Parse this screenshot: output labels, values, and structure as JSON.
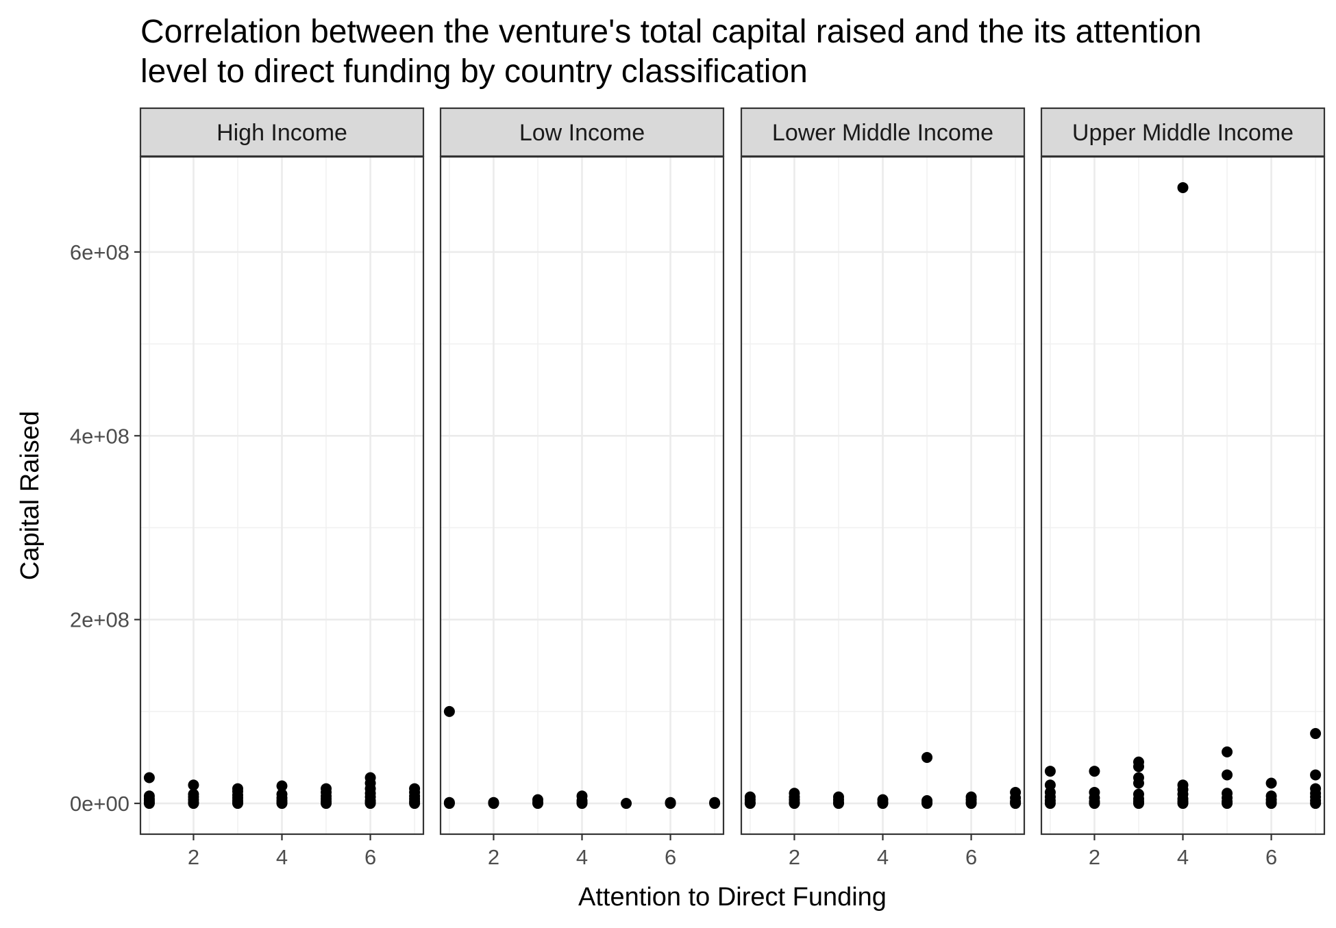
{
  "chart_data": {
    "type": "scatter",
    "title": "Correlation between the venture's total capital raised and the its attention level to direct funding by country classification",
    "title_lines": [
      "Correlation between the venture's total capital raised and the its attention",
      "level to direct funding by country classification"
    ],
    "xlabel": "Attention to Direct Funding",
    "ylabel": "Capital Raised",
    "xlim": [
      0.8,
      7.2
    ],
    "ylim": [
      -33500000,
      703500000
    ],
    "x_ticks": [
      2,
      4,
      6
    ],
    "y_ticks": [
      0,
      200000000,
      400000000,
      600000000
    ],
    "y_tick_labels": [
      "0e+00",
      "2e+08",
      "4e+08",
      "6e+08"
    ],
    "grid": true,
    "theme": "bw",
    "point_color": "#000000",
    "panels": [
      {
        "name": "High Income",
        "points": [
          [
            1,
            28000000
          ],
          [
            1,
            8000000
          ],
          [
            1,
            5000000
          ],
          [
            1,
            3000000
          ],
          [
            1,
            1000000
          ],
          [
            1,
            0
          ],
          [
            2,
            20000000
          ],
          [
            2,
            10000000
          ],
          [
            2,
            7000000
          ],
          [
            2,
            4000000
          ],
          [
            2,
            1000000
          ],
          [
            2,
            0
          ],
          [
            3,
            16000000
          ],
          [
            3,
            13000000
          ],
          [
            3,
            9000000
          ],
          [
            3,
            6000000
          ],
          [
            3,
            3000000
          ],
          [
            3,
            1000000
          ],
          [
            3,
            0
          ],
          [
            4,
            19000000
          ],
          [
            4,
            10000000
          ],
          [
            4,
            6000000
          ],
          [
            4,
            3000000
          ],
          [
            4,
            1000000
          ],
          [
            4,
            0
          ],
          [
            5,
            16000000
          ],
          [
            5,
            12000000
          ],
          [
            5,
            8000000
          ],
          [
            5,
            5000000
          ],
          [
            5,
            2000000
          ],
          [
            5,
            0
          ],
          [
            6,
            28000000
          ],
          [
            6,
            22000000
          ],
          [
            6,
            16000000
          ],
          [
            6,
            11000000
          ],
          [
            6,
            7000000
          ],
          [
            6,
            3000000
          ],
          [
            6,
            1000000
          ],
          [
            6,
            0
          ],
          [
            7,
            16000000
          ],
          [
            7,
            12000000
          ],
          [
            7,
            8000000
          ],
          [
            7,
            5000000
          ],
          [
            7,
            2000000
          ],
          [
            7,
            0
          ]
        ]
      },
      {
        "name": "Low Income",
        "points": [
          [
            1,
            100000000
          ],
          [
            1,
            1000000
          ],
          [
            1,
            0
          ],
          [
            2,
            1000000
          ],
          [
            2,
            0
          ],
          [
            3,
            4000000
          ],
          [
            3,
            1000000
          ],
          [
            3,
            0
          ],
          [
            4,
            8000000
          ],
          [
            4,
            3000000
          ],
          [
            4,
            1000000
          ],
          [
            4,
            0
          ],
          [
            5,
            0
          ],
          [
            6,
            1000000
          ],
          [
            6,
            0
          ],
          [
            7,
            1000000
          ],
          [
            7,
            0
          ]
        ]
      },
      {
        "name": "Lower Middle Income",
        "points": [
          [
            1,
            7000000
          ],
          [
            1,
            4000000
          ],
          [
            1,
            1000000
          ],
          [
            1,
            0
          ],
          [
            2,
            11000000
          ],
          [
            2,
            7000000
          ],
          [
            2,
            4000000
          ],
          [
            2,
            1000000
          ],
          [
            2,
            0
          ],
          [
            3,
            7000000
          ],
          [
            3,
            4000000
          ],
          [
            3,
            1000000
          ],
          [
            3,
            0
          ],
          [
            4,
            4000000
          ],
          [
            4,
            1000000
          ],
          [
            4,
            0
          ],
          [
            5,
            50000000
          ],
          [
            5,
            3000000
          ],
          [
            5,
            1000000
          ],
          [
            5,
            0
          ],
          [
            6,
            7000000
          ],
          [
            6,
            4000000
          ],
          [
            6,
            1000000
          ],
          [
            6,
            0
          ],
          [
            7,
            12000000
          ],
          [
            7,
            6000000
          ],
          [
            7,
            2000000
          ],
          [
            7,
            0
          ]
        ]
      },
      {
        "name": "Upper Middle Income",
        "points": [
          [
            1,
            35000000
          ],
          [
            1,
            20000000
          ],
          [
            1,
            12000000
          ],
          [
            1,
            7000000
          ],
          [
            1,
            3000000
          ],
          [
            1,
            0
          ],
          [
            2,
            35000000
          ],
          [
            2,
            12000000
          ],
          [
            2,
            6000000
          ],
          [
            2,
            2000000
          ],
          [
            2,
            0
          ],
          [
            3,
            45000000
          ],
          [
            3,
            40000000
          ],
          [
            3,
            28000000
          ],
          [
            3,
            22000000
          ],
          [
            3,
            10000000
          ],
          [
            3,
            5000000
          ],
          [
            3,
            2000000
          ],
          [
            3,
            0
          ],
          [
            4,
            670000000
          ],
          [
            4,
            20000000
          ],
          [
            4,
            15000000
          ],
          [
            4,
            10000000
          ],
          [
            4,
            5000000
          ],
          [
            4,
            2000000
          ],
          [
            4,
            0
          ],
          [
            5,
            56000000
          ],
          [
            5,
            31000000
          ],
          [
            5,
            11000000
          ],
          [
            5,
            6000000
          ],
          [
            5,
            2000000
          ],
          [
            5,
            0
          ],
          [
            6,
            22000000
          ],
          [
            6,
            8000000
          ],
          [
            6,
            4000000
          ],
          [
            6,
            1000000
          ],
          [
            6,
            0
          ],
          [
            7,
            76000000
          ],
          [
            7,
            31000000
          ],
          [
            7,
            16000000
          ],
          [
            7,
            11000000
          ],
          [
            7,
            7000000
          ],
          [
            7,
            3000000
          ],
          [
            7,
            0
          ]
        ]
      }
    ]
  }
}
